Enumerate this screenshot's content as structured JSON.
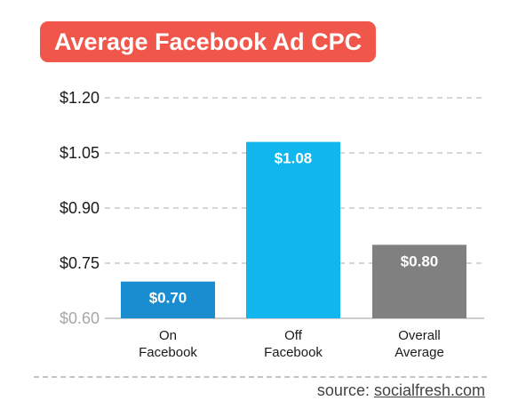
{
  "chart_data": {
    "type": "bar",
    "title": "Average Facebook Ad CPC",
    "categories": [
      [
        "On",
        "Facebook"
      ],
      [
        "Off",
        "Facebook"
      ],
      [
        "Overall",
        "Average"
      ]
    ],
    "values": [
      0.7,
      1.08,
      0.8
    ],
    "value_labels": [
      "$0.70",
      "$1.08",
      "$0.80"
    ],
    "bar_colors": [
      "#1a8dd1",
      "#12b6ee",
      "#808080"
    ],
    "yticks": [
      0.6,
      0.75,
      0.9,
      1.05,
      1.2
    ],
    "ytick_labels": [
      "$0.60",
      "$0.75",
      "$0.90",
      "$1.05",
      "$1.20"
    ],
    "ylim": [
      0.6,
      1.2
    ],
    "grid": "dashed horizontal",
    "xlabel": "",
    "ylabel": ""
  },
  "source": {
    "prefix": "source: ",
    "link": "socialfresh.com"
  }
}
